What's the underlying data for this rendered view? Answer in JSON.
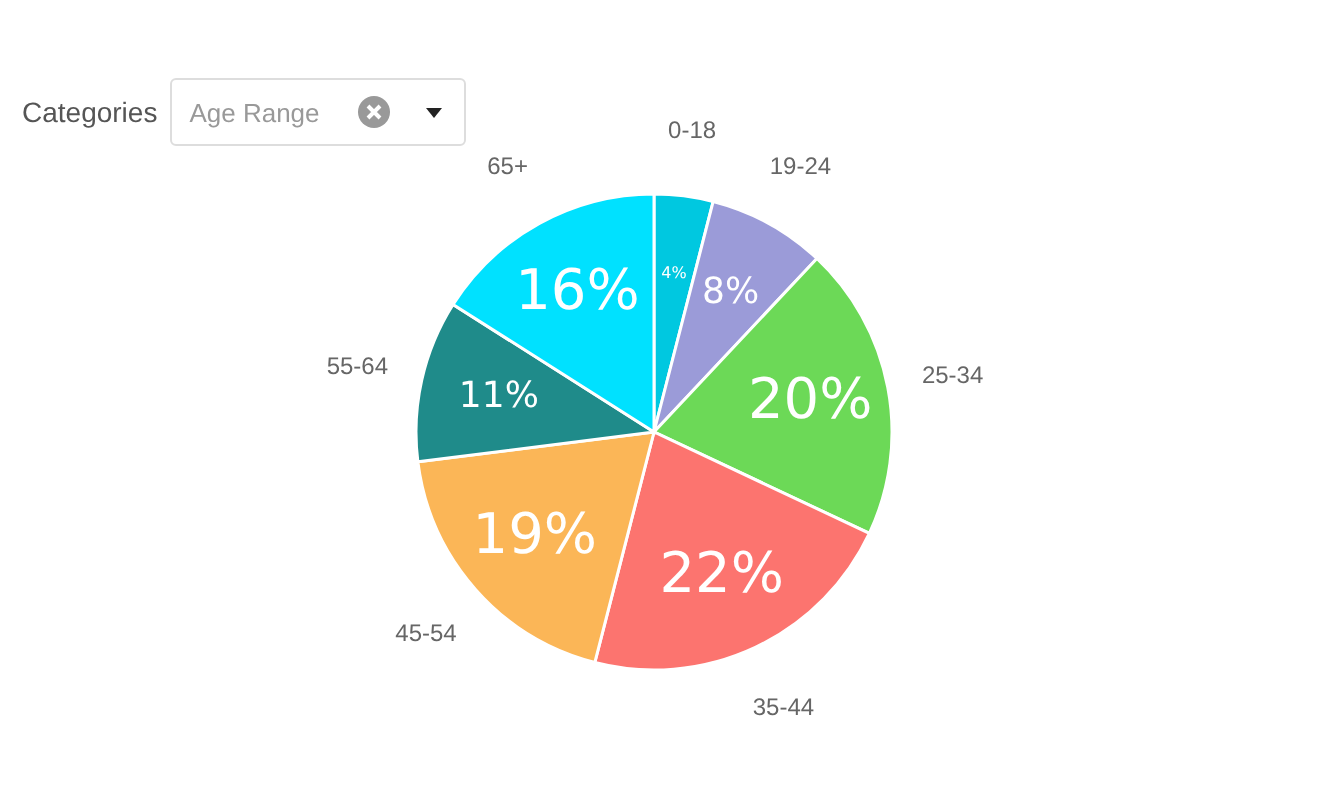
{
  "chart_data": {
    "type": "pie",
    "categories": [
      "0-18",
      "19-24",
      "25-34",
      "35-44",
      "45-54",
      "55-64",
      "65+"
    ],
    "values": [
      4,
      8,
      20,
      22,
      19,
      11,
      16
    ],
    "value_labels": [
      "4%",
      "8%",
      "20%",
      "22%",
      "19%",
      "11%",
      "16%"
    ],
    "colors": [
      "#00c8e0",
      "#9b9bd8",
      "#6cd957",
      "#fc746f",
      "#fbb657",
      "#1f8b8a",
      "#00e1ff"
    ],
    "annotations": [
      "Categories",
      "Age Range"
    ]
  }
}
